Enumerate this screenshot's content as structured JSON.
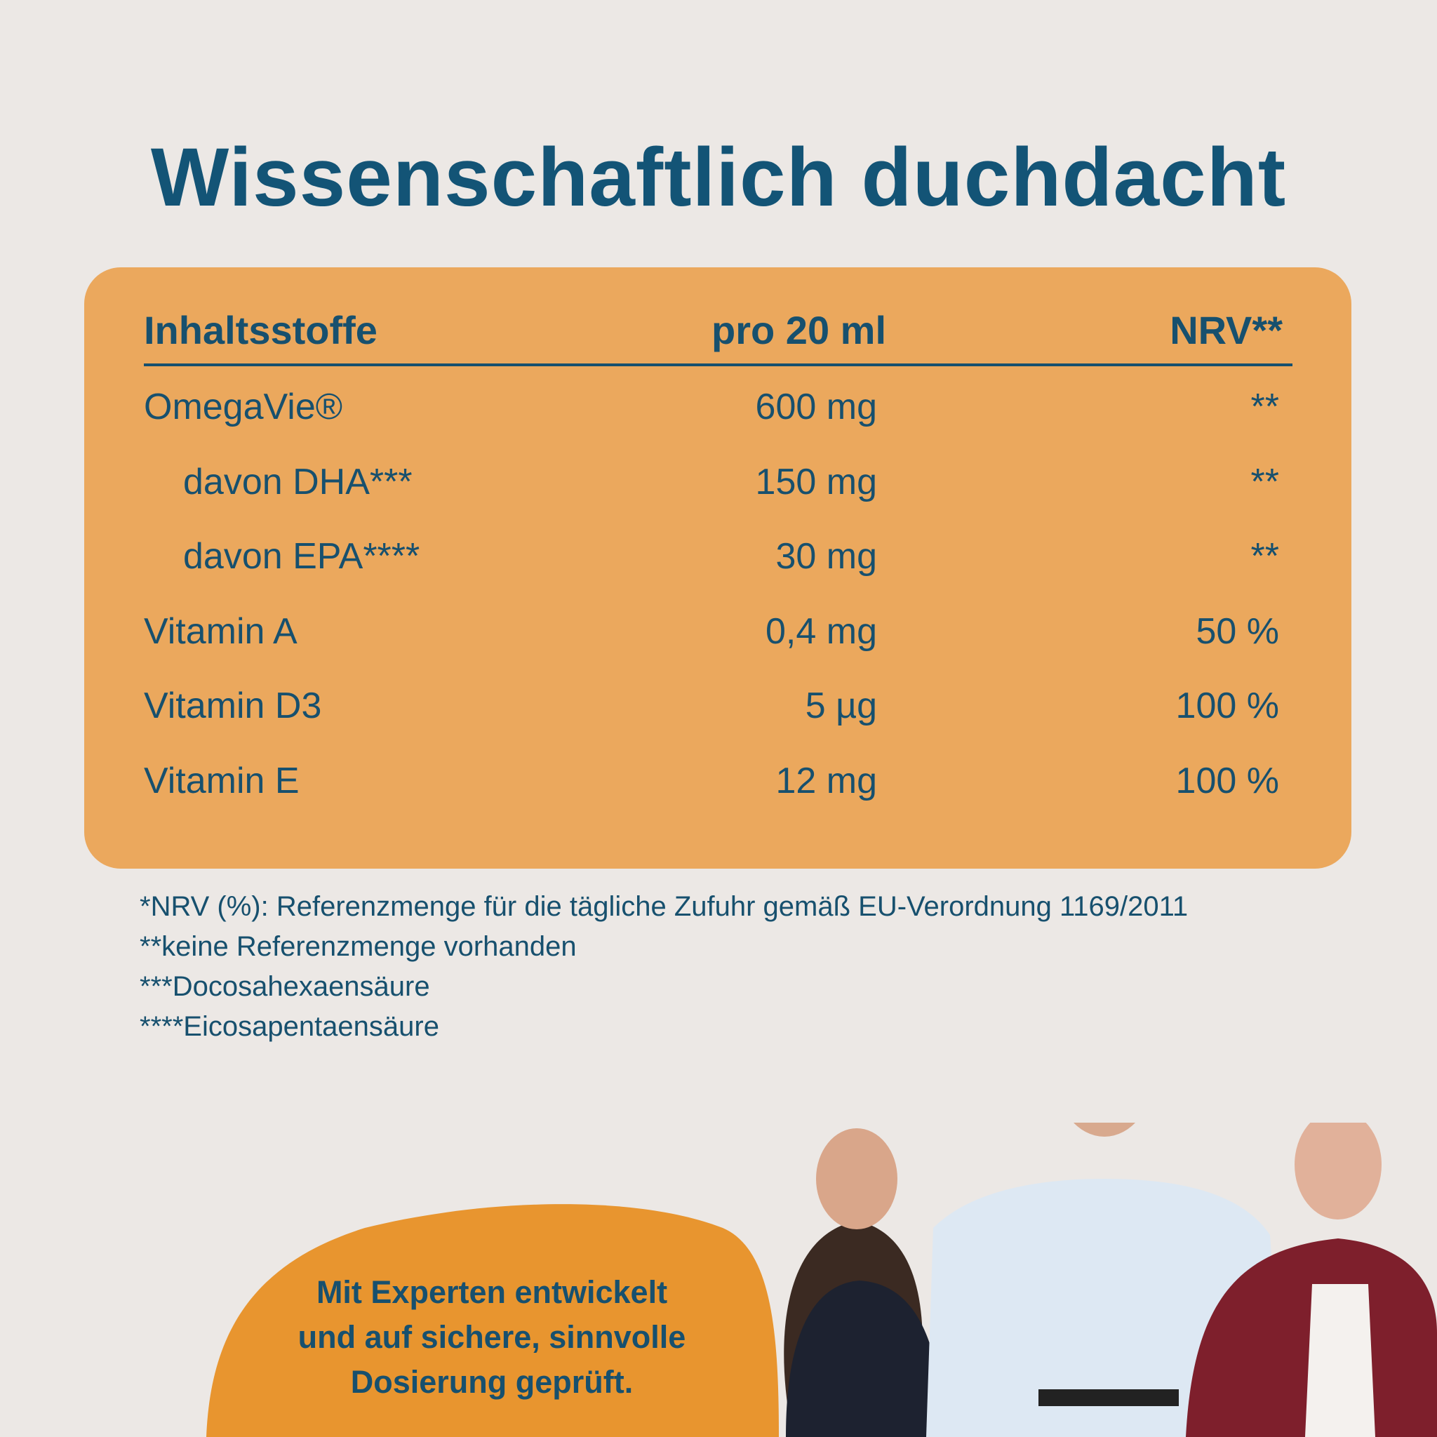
{
  "title": "Wissenschaftlich duchdacht",
  "table": {
    "headers": [
      "Inhaltsstoffe",
      "pro 20 ml",
      "NRV**"
    ],
    "rows": [
      [
        "OmegaVie®",
        "600 mg",
        "**"
      ],
      [
        "davon DHA***",
        "150 mg",
        "**"
      ],
      [
        "davon EPA****",
        "30 mg",
        "**"
      ],
      [
        "Vitamin A",
        "0,4 mg",
        "50 %"
      ],
      [
        "Vitamin D3",
        "5 µg",
        "100 %"
      ],
      [
        "Vitamin E",
        "12 mg",
        "100 %"
      ]
    ]
  },
  "footnotes": [
    "*NRV (%): Referenzmenge für die tägliche Zufuhr gemäß EU-Verordnung 1169/2011",
    "**keine Referenzmenge vorhanden",
    "***Docosahexaensäure",
    "****Eicosapentaensäure"
  ],
  "badge": [
    "Mit Experten entwickelt",
    "und auf sichere, sinnvolle",
    "Dosierung geprüft."
  ]
}
